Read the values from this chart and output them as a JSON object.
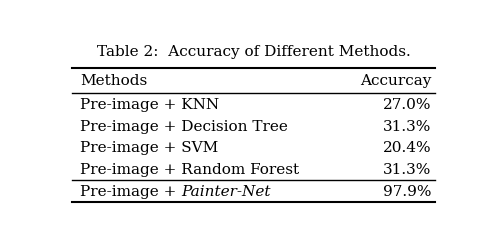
{
  "title": "Table 2:  Accuracy of Different Methods.",
  "col_headers": [
    "Methods",
    "Accurcay"
  ],
  "rows": [
    [
      "Pre-image + KNN",
      "27.0%"
    ],
    [
      "Pre-image + Decision Tree",
      "31.3%"
    ],
    [
      "Pre-image + SVM",
      "20.4%"
    ],
    [
      "Pre-image + Random Forest",
      "31.3%"
    ],
    [
      "Pre-image + Painter-Net",
      "97.9%"
    ]
  ],
  "italic_last_row_method": true,
  "bg_color": "#ffffff",
  "text_color": "#000000",
  "title_fontsize": 11,
  "header_fontsize": 11,
  "body_fontsize": 11
}
